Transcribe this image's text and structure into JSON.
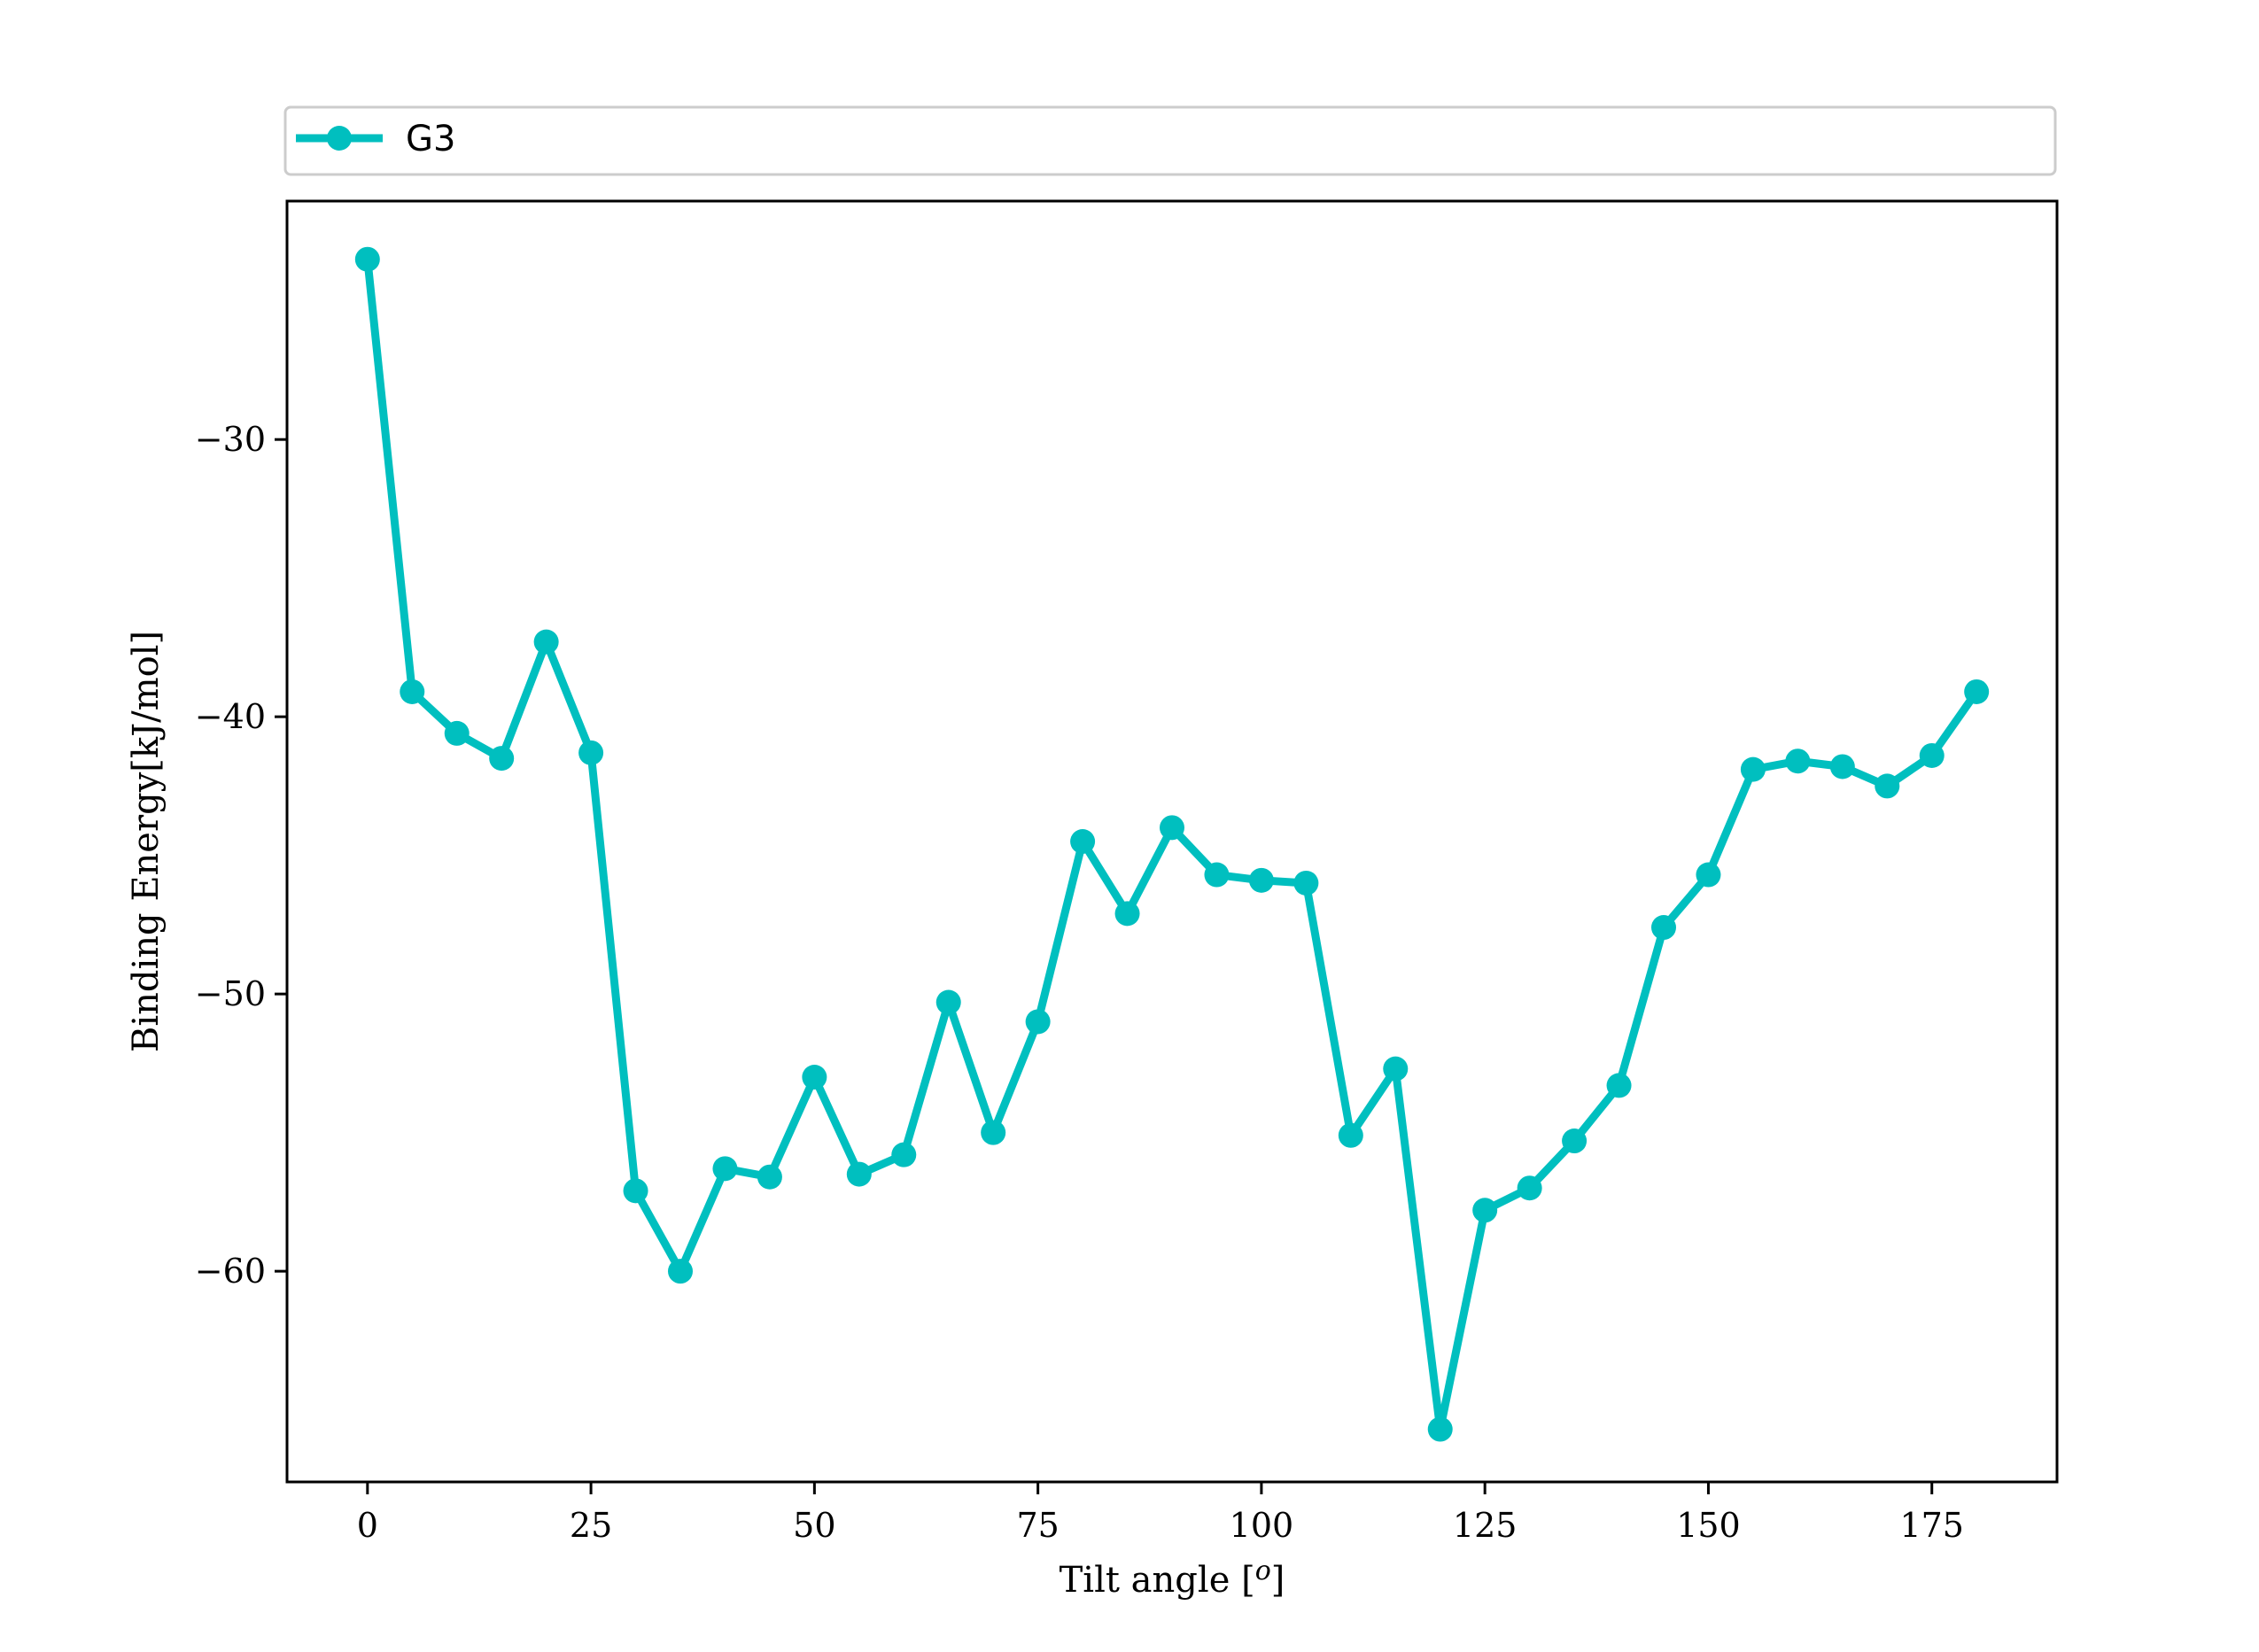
{
  "colors": {
    "series": "#00bfbf",
    "axis": "#000000",
    "legend_border": "#cccccc",
    "background": "#ffffff"
  },
  "chart_data": {
    "type": "line",
    "title": "",
    "xlabel": "Tilt angle [$^o$]",
    "xlabel_parts": {
      "before": "Tilt angle [",
      "italic": "o",
      "after": "]"
    },
    "ylabel": "Binding Energy[kJ/mol]",
    "xlim": [
      -9,
      189
    ],
    "ylim": [
      -67.6,
      -21.4
    ],
    "xticks": [
      0,
      25,
      50,
      75,
      100,
      125,
      150,
      175
    ],
    "xtick_labels": [
      "0",
      "25",
      "50",
      "75",
      "100",
      "125",
      "150",
      "175"
    ],
    "yticks": [
      -30,
      -40,
      -50,
      -60
    ],
    "ytick_labels": [
      "−30",
      "−40",
      "−50",
      "−60"
    ],
    "grid": false,
    "legend": {
      "position": "top, above plot",
      "entries": [
        "G3"
      ]
    },
    "series": [
      {
        "name": "G3",
        "marker": "circle",
        "x": [
          0,
          5,
          10,
          15,
          20,
          25,
          30,
          35,
          40,
          45,
          50,
          55,
          60,
          65,
          70,
          75,
          80,
          85,
          90,
          95,
          100,
          105,
          110,
          115,
          120,
          125,
          130,
          135,
          140,
          145,
          150,
          155,
          160,
          165,
          170,
          175,
          180
        ],
        "y": [
          -23.5,
          -39.1,
          -40.6,
          -41.5,
          -37.3,
          -41.3,
          -57.1,
          -60.0,
          -56.3,
          -56.6,
          -53.0,
          -56.5,
          -55.8,
          -50.3,
          -55.0,
          -51.0,
          -44.5,
          -47.1,
          -44.0,
          -45.7,
          -45.9,
          -46.0,
          -55.1,
          -52.7,
          -65.7,
          -57.8,
          -57.0,
          -55.3,
          -53.3,
          -47.6,
          -45.7,
          -41.9,
          -41.6,
          -41.8,
          -42.5,
          -41.4,
          -39.1
        ]
      }
    ]
  }
}
